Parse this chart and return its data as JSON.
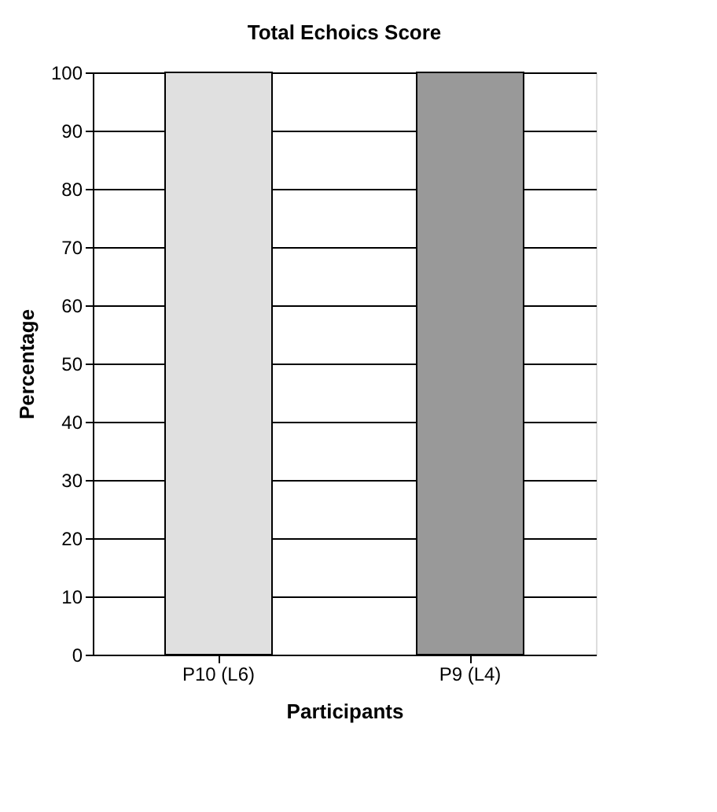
{
  "chart_data": {
    "type": "bar",
    "title": "Total Echoics Score",
    "xlabel": "Participants",
    "ylabel": "Percentage",
    "categories": [
      "P10 (L6)",
      "P9 (L4)"
    ],
    "values": [
      100,
      100
    ],
    "colors": [
      "#e0e0e0",
      "#999999"
    ],
    "ylim": [
      0,
      100
    ],
    "yticks": [
      0,
      10,
      20,
      30,
      40,
      50,
      60,
      70,
      80,
      90,
      100
    ],
    "grid": "y"
  }
}
